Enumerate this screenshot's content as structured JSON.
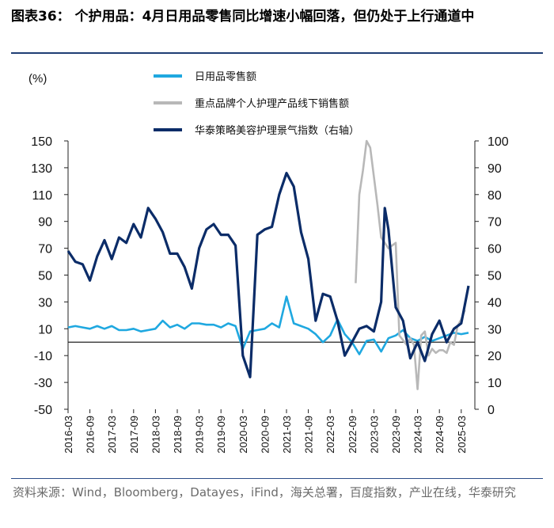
{
  "header": {
    "title": "图表36：   个护用品：4月日用品零售同比增速小幅回落，但仍处于上行通道中"
  },
  "footer": {
    "source": "资料来源：Wind，Bloomberg，Datayes，iFind，海关总署，百度指数，产业在线，华泰研究"
  },
  "chart_data": {
    "type": "line",
    "left_axis_unit": "(%)",
    "y_left": {
      "min": -50,
      "max": 150,
      "ticks": [
        -50,
        -30,
        -10,
        10,
        30,
        50,
        70,
        90,
        110,
        130,
        150
      ]
    },
    "y_right": {
      "min": 0,
      "max": 100,
      "ticks": [
        0,
        10,
        20,
        30,
        40,
        50,
        60,
        70,
        80,
        90,
        100
      ]
    },
    "x_range": [
      "2016-03",
      "2025-05"
    ],
    "x_ticks": [
      "2016-03",
      "2016-09",
      "2017-03",
      "2017-09",
      "2018-03",
      "2018-09",
      "2019-03",
      "2019-09",
      "2020-03",
      "2020-09",
      "2021-03",
      "2021-09",
      "2022-03",
      "2022-09",
      "2023-03",
      "2023-09",
      "2024-03",
      "2024-09",
      "2025-03"
    ],
    "zero_line": 0,
    "legend": {
      "position": "top"
    },
    "series": [
      {
        "name": "日用品零售额",
        "axis": "left",
        "color": "#1fa8e0",
        "points": [
          [
            "2016-03",
            11
          ],
          [
            "2016-05",
            12
          ],
          [
            "2016-07",
            11
          ],
          [
            "2016-09",
            10
          ],
          [
            "2016-11",
            12
          ],
          [
            "2017-01",
            10
          ],
          [
            "2017-03",
            12
          ],
          [
            "2017-05",
            9
          ],
          [
            "2017-07",
            9
          ],
          [
            "2017-09",
            10
          ],
          [
            "2017-11",
            8
          ],
          [
            "2018-01",
            9
          ],
          [
            "2018-03",
            10
          ],
          [
            "2018-05",
            16
          ],
          [
            "2018-07",
            11
          ],
          [
            "2018-09",
            13
          ],
          [
            "2018-11",
            10
          ],
          [
            "2019-01",
            14
          ],
          [
            "2019-03",
            14
          ],
          [
            "2019-05",
            13
          ],
          [
            "2019-07",
            13
          ],
          [
            "2019-09",
            11
          ],
          [
            "2019-11",
            14
          ],
          [
            "2020-01",
            12
          ],
          [
            "2020-03",
            -5
          ],
          [
            "2020-05",
            8
          ],
          [
            "2020-07",
            9
          ],
          [
            "2020-09",
            10
          ],
          [
            "2020-11",
            14
          ],
          [
            "2021-01",
            11
          ],
          [
            "2021-03",
            34
          ],
          [
            "2021-05",
            14
          ],
          [
            "2021-07",
            12
          ],
          [
            "2021-09",
            10
          ],
          [
            "2021-11",
            6
          ],
          [
            "2022-01",
            0
          ],
          [
            "2022-03",
            5
          ],
          [
            "2022-05",
            17
          ],
          [
            "2022-07",
            6
          ],
          [
            "2022-09",
            0
          ],
          [
            "2022-11",
            -9
          ],
          [
            "2023-01",
            1
          ],
          [
            "2023-03",
            2
          ],
          [
            "2023-05",
            -7
          ],
          [
            "2023-07",
            3
          ],
          [
            "2023-09",
            5
          ],
          [
            "2023-11",
            9
          ],
          [
            "2024-01",
            3
          ],
          [
            "2024-03",
            1
          ],
          [
            "2024-05",
            4
          ],
          [
            "2024-07",
            1
          ],
          [
            "2024-09",
            3
          ],
          [
            "2024-11",
            5
          ],
          [
            "2025-01",
            7
          ],
          [
            "2025-03",
            6
          ],
          [
            "2025-05",
            7
          ]
        ]
      },
      {
        "name": "重点品牌个人护理产品线下销售额",
        "axis": "left",
        "color": "#b8b8b8",
        "points": [
          [
            "2022-10",
            44
          ],
          [
            "2022-11",
            110
          ],
          [
            "2022-12",
            128
          ],
          [
            "2023-01",
            150
          ],
          [
            "2023-02",
            145
          ],
          [
            "2023-04",
            102
          ],
          [
            "2023-05",
            78
          ],
          [
            "2023-06",
            74
          ],
          [
            "2023-07",
            70
          ],
          [
            "2023-08",
            72
          ],
          [
            "2023-09",
            74
          ],
          [
            "2023-10",
            5
          ],
          [
            "2023-12",
            -2
          ],
          [
            "2024-01",
            3
          ],
          [
            "2024-02",
            -2
          ],
          [
            "2024-03",
            -35
          ],
          [
            "2024-04",
            5
          ],
          [
            "2024-05",
            8
          ],
          [
            "2024-06",
            -10
          ],
          [
            "2024-07",
            -5
          ],
          [
            "2024-08",
            -8
          ],
          [
            "2024-09",
            -6
          ],
          [
            "2024-10",
            -6
          ],
          [
            "2024-11",
            -8
          ],
          [
            "2024-12",
            0
          ],
          [
            "2025-01",
            -2
          ],
          [
            "2025-02",
            12
          ],
          [
            "2025-03",
            17
          ],
          [
            "2025-04",
            24
          ]
        ]
      },
      {
        "name": "华泰策略美容护理景气指数（右轴）",
        "axis": "right",
        "color": "#0b2c68",
        "points": [
          [
            "2016-03",
            59
          ],
          [
            "2016-05",
            55
          ],
          [
            "2016-07",
            54
          ],
          [
            "2016-09",
            48
          ],
          [
            "2016-11",
            57
          ],
          [
            "2017-01",
            63
          ],
          [
            "2017-03",
            56
          ],
          [
            "2017-05",
            64
          ],
          [
            "2017-07",
            62
          ],
          [
            "2017-09",
            69
          ],
          [
            "2017-11",
            64
          ],
          [
            "2018-01",
            75
          ],
          [
            "2018-03",
            71
          ],
          [
            "2018-05",
            66
          ],
          [
            "2018-07",
            58
          ],
          [
            "2018-09",
            58
          ],
          [
            "2018-11",
            53
          ],
          [
            "2019-01",
            45
          ],
          [
            "2019-03",
            60
          ],
          [
            "2019-05",
            67
          ],
          [
            "2019-07",
            69
          ],
          [
            "2019-09",
            65
          ],
          [
            "2019-11",
            65
          ],
          [
            "2020-01",
            61
          ],
          [
            "2020-03",
            20
          ],
          [
            "2020-05",
            12
          ],
          [
            "2020-07",
            65
          ],
          [
            "2020-09",
            67
          ],
          [
            "2020-11",
            68
          ],
          [
            "2021-01",
            80
          ],
          [
            "2021-03",
            88
          ],
          [
            "2021-05",
            83
          ],
          [
            "2021-07",
            66
          ],
          [
            "2021-09",
            56
          ],
          [
            "2021-11",
            33
          ],
          [
            "2022-01",
            43
          ],
          [
            "2022-03",
            42
          ],
          [
            "2022-05",
            33
          ],
          [
            "2022-07",
            20
          ],
          [
            "2022-09",
            25
          ],
          [
            "2022-11",
            30
          ],
          [
            "2023-01",
            31
          ],
          [
            "2023-03",
            29
          ],
          [
            "2023-05",
            40
          ],
          [
            "2023-06",
            75
          ],
          [
            "2023-07",
            67
          ],
          [
            "2023-09",
            38
          ],
          [
            "2023-11",
            33
          ],
          [
            "2024-01",
            19
          ],
          [
            "2024-03",
            25
          ],
          [
            "2024-05",
            18
          ],
          [
            "2024-07",
            28
          ],
          [
            "2024-09",
            33
          ],
          [
            "2024-11",
            25
          ],
          [
            "2025-01",
            30
          ],
          [
            "2025-03",
            32
          ],
          [
            "2025-05",
            46
          ]
        ]
      }
    ]
  }
}
